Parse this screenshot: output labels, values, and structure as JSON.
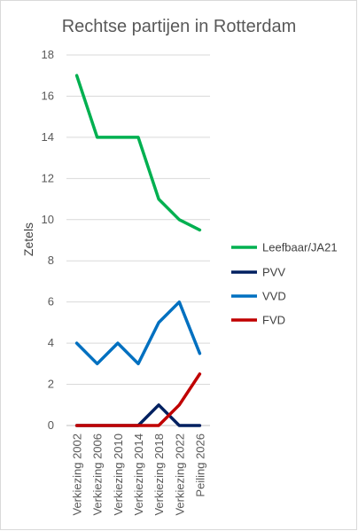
{
  "chart_data": {
    "type": "line",
    "title": "Rechtse partijen in Rotterdam",
    "ylabel": "Zetels",
    "xlabel": "",
    "ylim": [
      0,
      18
    ],
    "ytick_step": 2,
    "yticks": [
      "0",
      "2",
      "4",
      "6",
      "8",
      "10",
      "12",
      "14",
      "16",
      "18"
    ],
    "grid": true,
    "legend_position": "right",
    "categories": [
      "Verkiezing 2002",
      "Verkiezing 2006",
      "Verkiezing 2010",
      "Verkiezing 2014",
      "Verkiezing 2018",
      "Verkiezing 2022",
      "Peiling 2026"
    ],
    "series": [
      {
        "name": "Leefbaar/JA21",
        "color": "#00b050",
        "values": [
          17,
          14,
          14,
          14,
          11,
          10,
          9.5
        ]
      },
      {
        "name": "PVV",
        "color": "#002060",
        "values": [
          0,
          0,
          0,
          0,
          1,
          0,
          0
        ]
      },
      {
        "name": "VVD",
        "color": "#0070c0",
        "values": [
          4,
          3,
          4,
          3,
          5,
          6,
          3.5
        ]
      },
      {
        "name": "FVD",
        "color": "#c00000",
        "values": [
          0,
          0,
          0,
          0,
          0,
          1,
          2.5
        ]
      }
    ]
  }
}
